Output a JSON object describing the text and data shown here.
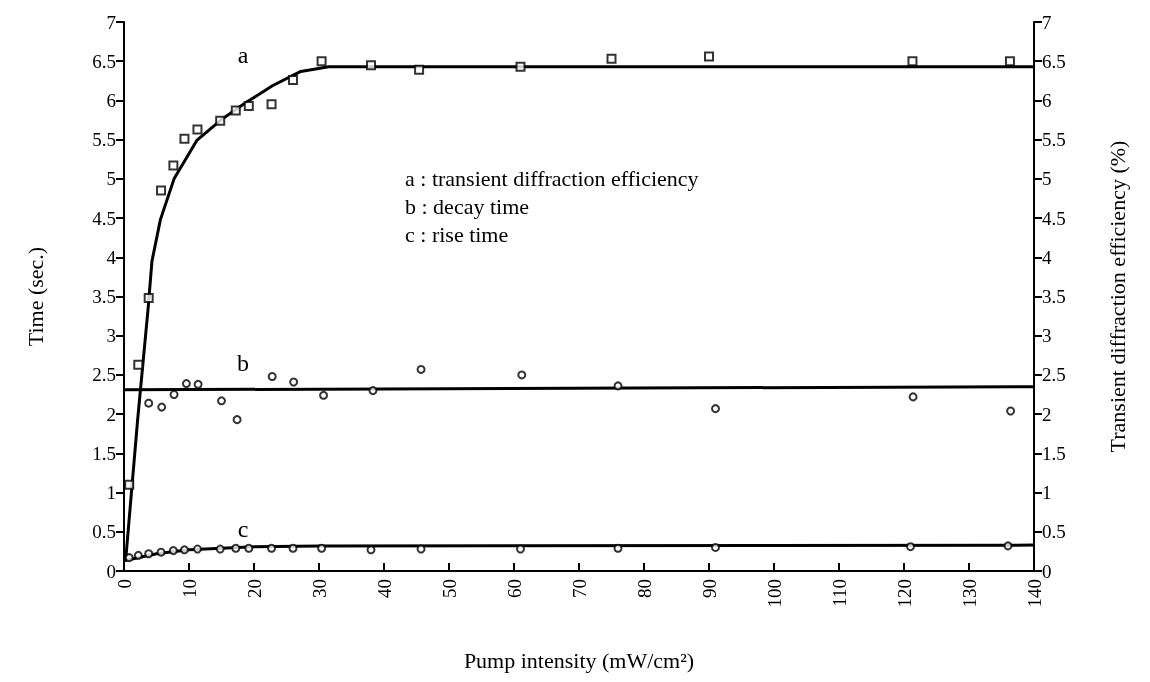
{
  "chart_data": {
    "type": "scatter",
    "xlabel": "Pump intensity (mW/cm²)",
    "ylabel": "Time (sec.)",
    "y2label": "Transient diffraction efficiency (%)",
    "xlim": [
      0,
      140
    ],
    "xticks": [
      0,
      10,
      20,
      30,
      40,
      50,
      60,
      70,
      80,
      90,
      100,
      110,
      120,
      130,
      140
    ],
    "ylim": [
      0,
      7
    ],
    "yticks": [
      0,
      0.5,
      1,
      1.5,
      2,
      2.5,
      3,
      3.5,
      4,
      4.5,
      5,
      5.5,
      6,
      6.5,
      7
    ],
    "y2lim": [
      0,
      7
    ],
    "y2ticks": [
      0,
      0.5,
      1,
      1.5,
      2,
      2.5,
      3,
      3.5,
      4,
      4.5,
      5,
      5.5,
      6,
      6.5,
      7
    ],
    "grid": false,
    "annotations": [
      "a : transient diffraction efficiency",
      "b : decay time",
      "c : rise time",
      "a",
      "b",
      "c"
    ],
    "series": [
      {
        "marker": "square",
        "color": "#000000",
        "x": [
          0.8,
          2.2,
          3.8,
          5.7,
          7.6,
          9.3,
          11.3,
          14.8,
          17.2,
          19.2,
          22.7,
          26,
          30.4,
          38,
          45.4,
          61,
          75,
          90,
          121.3,
          136.3
        ],
        "values": [
          1.1,
          2.63,
          3.48,
          4.85,
          5.17,
          5.51,
          5.63,
          5.74,
          5.87,
          5.93,
          5.95,
          6.26,
          6.5,
          6.45,
          6.39,
          6.43,
          6.53,
          6.56,
          6.5,
          6.5
        ]
      },
      {
        "type": "line",
        "marker": "none",
        "line_style": "solid",
        "color": "#000000",
        "x": [
          0,
          0.3,
          2.1,
          3.7,
          4.3,
          5.6,
          7.7,
          11.2,
          14.9,
          18.7,
          22.9,
          27.2,
          31.5,
          140
        ],
        "values": [
          0.15,
          0.18,
          1.93,
          3.34,
          3.95,
          4.48,
          5,
          5.49,
          5.75,
          5.97,
          6.19,
          6.37,
          6.43,
          6.43
        ]
      },
      {
        "marker": "circle",
        "color": "#000000",
        "x": [
          3.8,
          5.8,
          7.7,
          9.6,
          11.4,
          15,
          17.4,
          22.8,
          26.1,
          30.7,
          38.3,
          45.7,
          61.2,
          76,
          91,
          121.4,
          136.4
        ],
        "values": [
          2.14,
          2.09,
          2.25,
          2.39,
          2.38,
          2.17,
          1.93,
          2.48,
          2.41,
          2.24,
          2.3,
          2.57,
          2.5,
          2.36,
          2.07,
          2.22,
          2.04
        ]
      },
      {
        "type": "line",
        "marker": "none",
        "line_style": "solid",
        "color": "#000000",
        "x": [
          0,
          140
        ],
        "values": [
          2.31,
          2.35
        ]
      },
      {
        "marker": "circle",
        "color": "#000000",
        "x": [
          0.8,
          2.2,
          3.8,
          5.7,
          7.6,
          9.3,
          11.3,
          14.8,
          17.2,
          19.2,
          22.7,
          26,
          30.4,
          38,
          45.7,
          61,
          76,
          91,
          121,
          136
        ],
        "values": [
          0.17,
          0.2,
          0.22,
          0.24,
          0.26,
          0.27,
          0.28,
          0.28,
          0.29,
          0.29,
          0.29,
          0.29,
          0.29,
          0.27,
          0.28,
          0.28,
          0.29,
          0.3,
          0.31,
          0.32
        ]
      },
      {
        "type": "line",
        "marker": "none",
        "line_style": "solid",
        "color": "#000000",
        "x": [
          0,
          5,
          10,
          20,
          30,
          140
        ],
        "values": [
          0.13,
          0.22,
          0.27,
          0.31,
          0.32,
          0.33
        ]
      }
    ]
  }
}
